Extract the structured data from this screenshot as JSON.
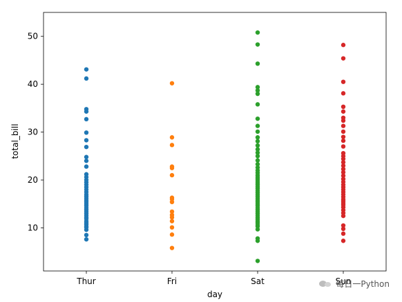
{
  "chart_data": {
    "type": "scatter",
    "xlabel": "day",
    "ylabel": "total_bill",
    "categories": [
      "Thur",
      "Fri",
      "Sat",
      "Sun"
    ],
    "ylim": [
      1,
      55
    ],
    "yticks": [
      10,
      20,
      30,
      40,
      50
    ],
    "grid": false,
    "series": [
      {
        "category": "Thur",
        "color": "#1f77b4",
        "values": [
          7.6,
          8.5,
          9.6,
          10.1,
          10.3,
          10.7,
          11.0,
          11.4,
          11.9,
          12.2,
          12.6,
          13.0,
          13.4,
          13.8,
          14.2,
          14.6,
          15.0,
          15.4,
          15.8,
          16.2,
          16.6,
          17.0,
          17.5,
          18.0,
          18.5,
          19.0,
          19.5,
          20.0,
          20.6,
          21.2,
          22.8,
          24.0,
          24.8,
          26.9,
          28.3,
          29.9,
          32.7,
          34.3,
          34.8,
          41.2,
          43.1
        ]
      },
      {
        "category": "Fri",
        "color": "#ff7f0e",
        "values": [
          5.8,
          8.6,
          10.1,
          11.4,
          12.2,
          12.7,
          13.4,
          15.4,
          16.0,
          16.3,
          21.0,
          22.5,
          22.8,
          27.3,
          28.9,
          40.2
        ]
      },
      {
        "category": "Sat",
        "color": "#2ca02c",
        "values": [
          3.1,
          7.3,
          7.8,
          9.7,
          10.3,
          10.6,
          11.0,
          11.4,
          11.8,
          12.2,
          12.6,
          13.0,
          13.4,
          13.8,
          14.2,
          14.6,
          15.0,
          15.4,
          15.8,
          16.2,
          16.6,
          17.0,
          17.4,
          17.8,
          18.2,
          18.6,
          19.0,
          19.4,
          19.8,
          20.2,
          20.6,
          21.0,
          21.5,
          22.0,
          22.6,
          23.3,
          24.1,
          25.0,
          25.7,
          26.4,
          27.2,
          28.1,
          28.9,
          30.1,
          31.3,
          32.8,
          35.8,
          38.0,
          38.7,
          39.4,
          44.3,
          48.3,
          50.8
        ]
      },
      {
        "category": "Sun",
        "color": "#d62728",
        "values": [
          7.3,
          8.8,
          9.8,
          10.5,
          12.5,
          13.1,
          13.7,
          14.3,
          14.8,
          15.2,
          15.6,
          16.0,
          16.5,
          17.0,
          17.5,
          18.0,
          18.5,
          19.0,
          19.6,
          20.2,
          20.9,
          21.6,
          22.3,
          23.0,
          23.7,
          24.4,
          25.0,
          25.6,
          27.0,
          28.2,
          29.0,
          30.1,
          31.3,
          32.4,
          33.0,
          34.3,
          35.3,
          38.1,
          40.5,
          45.4,
          48.2
        ]
      }
    ]
  },
  "watermark": {
    "text": "每日一Python",
    "icon": "wechat-icon"
  }
}
